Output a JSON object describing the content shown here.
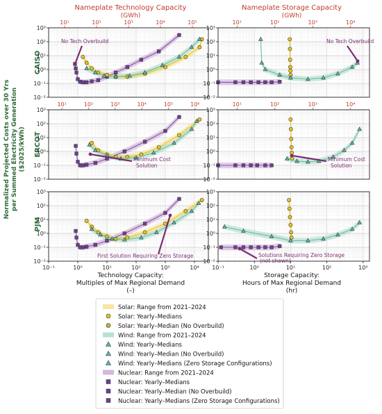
{
  "titles": {
    "left_top": "Nameplate Technology Capacity",
    "left_top_unit": "(GWh)",
    "right_top": "Nameplate Storage Capacity",
    "right_top_unit": "(GWh)"
  },
  "y_label_lines": [
    "Normalized Projected Costs over 30 Yrs",
    "per Summed Electricity Generation",
    "($2025/kWh)"
  ],
  "x_label_left": [
    "Technology Capacity:",
    "Multiples of Max Regional Demand",
    "(–)"
  ],
  "x_label_right": [
    "Storage Capacity:",
    "Hours of Max Regional Demand",
    "(hr)"
  ],
  "rows": [
    "CAISO",
    "ERCOT",
    "PJM"
  ],
  "annotations": {
    "no_tech_left": "No Tech Overbuild",
    "no_tech_right": "No Tech Overbuild",
    "min_cost_left": [
      "Minimum Cost",
      "Solution"
    ],
    "min_cost_right": [
      "Minimum Cost",
      "Solution"
    ],
    "first_zero": "First Solution Requiring Zero Storage",
    "sol_zero": [
      "Solutions Requiring Zero Storage",
      "(not shown)"
    ]
  },
  "legend": [
    {
      "label": "Solar: Range from 2021–2024",
      "kind": "band",
      "color": "#f7e08a"
    },
    {
      "label": "Solar: Yearly–Medians",
      "kind": "circle",
      "color": "#e9c41d"
    },
    {
      "label": "Solar: Yearly–Median (No Overbuild)",
      "kind": "circle-dot",
      "color": "#b5b83a"
    },
    {
      "label": "Wind: Range from 2021–2024",
      "kind": "band",
      "color": "#a8d8cc"
    },
    {
      "label": "Wind: Yearly–Medians",
      "kind": "triangle",
      "color": "#5fb8ad"
    },
    {
      "label": "Wind: Yearly–Median (No Overbuild)",
      "kind": "triangle-dot",
      "color": "#5fb8ad"
    },
    {
      "label": "Wind: Yearly–Medians (Zero Storage Configurations)",
      "kind": "triangle-half",
      "color": "#5fb8ad"
    },
    {
      "label": "Nuclear: Range from 2021–2024",
      "kind": "band",
      "color": "#c9a6d6"
    },
    {
      "label": "Nuclear: Yearly–Medians",
      "kind": "square",
      "color": "#6b3f91"
    },
    {
      "label": "Nuclear: Yearly–Median (No Overbuild)",
      "kind": "square-dot",
      "color": "#6b3f91"
    },
    {
      "label": "Nuclear: Yearly–Medians (Zero Storage Configurations)",
      "kind": "square-half",
      "color": "#6b3f91"
    }
  ],
  "axes": {
    "left_x_ticks": [
      "10⁻¹",
      "10⁰",
      "10¹",
      "10²",
      "10³",
      "10⁴"
    ],
    "right_x_ticks": [
      "10⁻¹",
      "10⁰",
      "10¹",
      "10²",
      "10³"
    ],
    "y_ticks": [
      "10⁻²",
      "10⁻¹",
      "10⁰",
      "10¹",
      "10²",
      "10³"
    ],
    "top_ticks": {
      "CAISO_left": [
        "10¹",
        "10²",
        "10³",
        "10⁴",
        "10⁵"
      ],
      "CAISO_right": [
        "10¹",
        "10²",
        "10³",
        "10⁴"
      ],
      "ERCOT_left": [
        "10¹",
        "10²",
        "10³",
        "10⁴",
        "10⁵",
        "10⁶"
      ],
      "ERCOT_right": [
        "10¹",
        "10²",
        "10³",
        "10⁴"
      ]
    }
  },
  "chart_data": [
    {
      "type": "line",
      "panel": "CAISO technology",
      "x_scale": "log",
      "y_scale": "log",
      "xlim": [
        0.1,
        30000
      ],
      "ylim": [
        0.01,
        1000
      ],
      "series": [
        {
          "name": "Nuclear",
          "x": [
            0.8,
            0.85,
            0.9,
            1.0,
            1.2,
            1.5,
            2,
            3,
            5,
            10,
            20,
            50,
            150,
            600,
            3000
          ],
          "y": [
            2.5,
            1.2,
            0.6,
            0.2,
            0.13,
            0.12,
            0.12,
            0.14,
            0.17,
            0.3,
            0.6,
            1.5,
            5,
            20,
            300
          ]
        },
        {
          "name": "Solar",
          "x": [
            1.5,
            2,
            3,
            5,
            10,
            20,
            50,
            200,
            1000,
            5000,
            15000,
            18000
          ],
          "y": [
            8,
            3,
            1.2,
            0.6,
            0.4,
            0.3,
            0.3,
            0.5,
            1.5,
            8,
            40,
            150
          ]
        },
        {
          "name": "Wind",
          "x": [
            2,
            4,
            8,
            20,
            60,
            200,
            800,
            3000,
            8000,
            15000
          ],
          "y": [
            1.2,
            0.6,
            0.35,
            0.3,
            0.35,
            0.6,
            2,
            8,
            40,
            150
          ]
        }
      ]
    },
    {
      "type": "line",
      "panel": "CAISO storage",
      "x_scale": "log",
      "y_scale": "log",
      "xlim": [
        0.1,
        1500
      ],
      "ylim": [
        0.01,
        1000
      ],
      "series": [
        {
          "name": "Nuclear",
          "x": [
            0.1,
            0.3,
            0.5,
            0.8,
            1.3,
            2,
            3,
            5
          ],
          "y": [
            0.12,
            0.12,
            0.12,
            0.12,
            0.12,
            0.12,
            0.12,
            0.13
          ]
        },
        {
          "name": "Solar",
          "x": [
            9.5,
            9.6,
            9.7,
            9.8,
            9.9,
            10
          ],
          "y": [
            150,
            30,
            5,
            1.5,
            0.8,
            0.4
          ]
        },
        {
          "name": "Wind",
          "x": [
            1.5,
            1.6,
            2,
            5,
            10,
            30,
            80,
            200,
            500,
            700
          ],
          "y": [
            150,
            3,
            1.0,
            0.4,
            0.25,
            0.2,
            0.25,
            0.5,
            1.5,
            3
          ]
        }
      ]
    },
    {
      "type": "line",
      "panel": "ERCOT technology",
      "x_scale": "log",
      "y_scale": "log",
      "xlim": [
        0.1,
        30000
      ],
      "ylim": [
        0.01,
        1000
      ],
      "series": [
        {
          "name": "Nuclear",
          "x": [
            0.85,
            0.9,
            1.0,
            1.2,
            1.5,
            2,
            4,
            10,
            40,
            200,
            1000,
            3000
          ],
          "y": [
            2.5,
            0.7,
            0.18,
            0.1,
            0.1,
            0.11,
            0.15,
            0.3,
            1.0,
            5,
            30,
            300
          ]
        },
        {
          "name": "Solar",
          "x": [
            3,
            5,
            10,
            20,
            50,
            150,
            600,
            3000,
            15000
          ],
          "y": [
            4,
            1.2,
            0.6,
            0.4,
            0.4,
            0.6,
            2,
            15,
            200
          ]
        },
        {
          "name": "Wind",
          "x": [
            2.5,
            4,
            10,
            30,
            100,
            400,
            2000,
            8000,
            12000
          ],
          "y": [
            3,
            1.2,
            0.5,
            0.3,
            0.35,
            0.8,
            4,
            40,
            150
          ]
        }
      ]
    },
    {
      "type": "line",
      "panel": "ERCOT storage",
      "x_scale": "log",
      "y_scale": "log",
      "xlim": [
        0.1,
        1500
      ],
      "ylim": [
        0.01,
        1000
      ],
      "series": [
        {
          "name": "Nuclear",
          "x": [
            0.1,
            0.3,
            0.5,
            0.8,
            1.2,
            2,
            3
          ],
          "y": [
            0.1,
            0.1,
            0.1,
            0.1,
            0.1,
            0.1,
            0.1
          ]
        },
        {
          "name": "Solar",
          "x": [
            10,
            10.2,
            10.4,
            10.6,
            10.8,
            11
          ],
          "y": [
            200,
            40,
            8,
            2,
            0.8,
            0.3
          ]
        },
        {
          "name": "Wind",
          "x": [
            8,
            15,
            30,
            60,
            150,
            300,
            500,
            800
          ],
          "y": [
            0.3,
            0.2,
            0.18,
            0.2,
            0.4,
            1.2,
            4,
            40
          ]
        }
      ]
    },
    {
      "type": "line",
      "panel": "PJM technology",
      "x_scale": "log",
      "y_scale": "log",
      "xlim": [
        0.1,
        30000
      ],
      "ylim": [
        0.01,
        1000
      ],
      "series": [
        {
          "name": "Nuclear",
          "x": [
            0.85,
            0.9,
            1.0,
            1.2,
            1.5,
            2,
            4,
            10,
            40,
            200,
            1000,
            3000
          ],
          "y": [
            1.5,
            0.5,
            0.15,
            0.1,
            0.1,
            0.11,
            0.15,
            0.3,
            1.0,
            5,
            30,
            300
          ]
        },
        {
          "name": "Solar",
          "x": [
            2,
            3,
            5,
            10,
            20,
            50,
            200,
            1000,
            5000,
            18000
          ],
          "y": [
            8,
            3,
            1.2,
            0.6,
            0.4,
            0.5,
            1.2,
            5,
            40,
            250
          ]
        },
        {
          "name": "Wind",
          "x": [
            3,
            6,
            15,
            40,
            150,
            500,
            2000,
            8000,
            14000
          ],
          "y": [
            2,
            0.8,
            0.4,
            0.35,
            0.5,
            1.2,
            6,
            40,
            150
          ]
        }
      ]
    },
    {
      "type": "line",
      "panel": "PJM storage",
      "x_scale": "log",
      "y_scale": "log",
      "xlim": [
        0.1,
        1500
      ],
      "ylim": [
        0.01,
        1000
      ],
      "series": [
        {
          "name": "Nuclear",
          "x": [
            0.12,
            0.3,
            0.5,
            0.8,
            1.3,
            2,
            3,
            5
          ],
          "y": [
            0.1,
            0.1,
            0.1,
            0.1,
            0.1,
            0.1,
            0.1,
            0.12
          ]
        },
        {
          "name": "Solar",
          "x": [
            9,
            9.3,
            9.6,
            10,
            10.3,
            10.6
          ],
          "y": [
            250,
            60,
            15,
            4,
            1.2,
            0.5
          ]
        },
        {
          "name": "Wind",
          "x": [
            0.15,
            0.5,
            3,
            10,
            30,
            80,
            200,
            500,
            800
          ],
          "y": [
            3,
            1.5,
            0.6,
            0.3,
            0.3,
            0.4,
            0.8,
            2,
            6
          ]
        }
      ]
    }
  ]
}
